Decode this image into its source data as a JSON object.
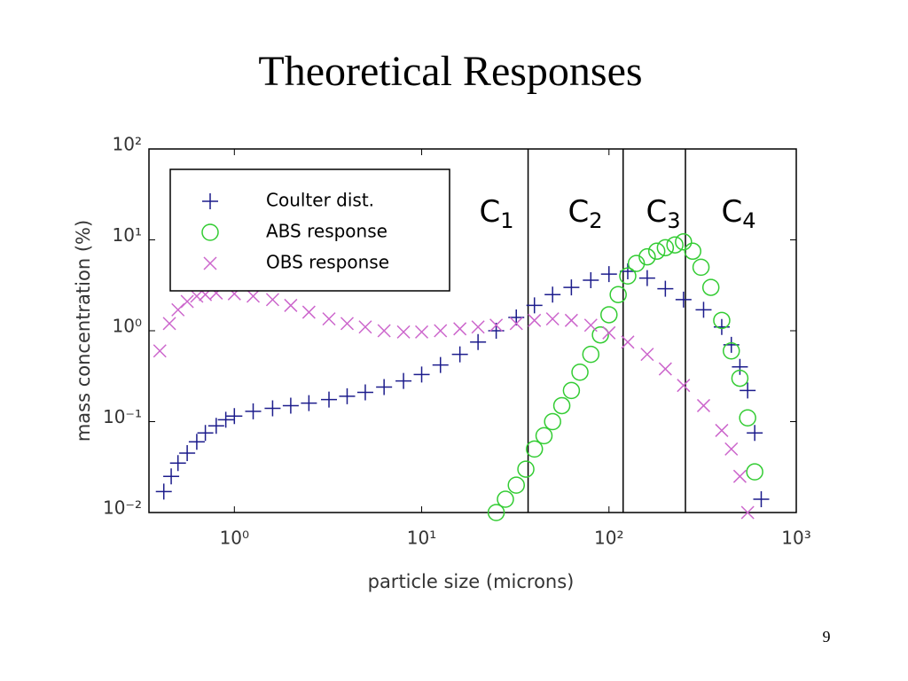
{
  "title": "Theoretical Responses",
  "page_number": "9",
  "chart_data": {
    "type": "scatter",
    "xlabel": "particle size (microns)",
    "ylabel": "mass concentration (%)",
    "xscale": "log",
    "yscale": "log",
    "xlim": [
      0.35,
      1000
    ],
    "ylim": [
      0.01,
      100
    ],
    "xticks": [
      {
        "value": 1,
        "label": "10⁰"
      },
      {
        "value": 10,
        "label": "10¹"
      },
      {
        "value": 100,
        "label": "10²"
      },
      {
        "value": 1000,
        "label": "10³"
      }
    ],
    "yticks": [
      {
        "value": 0.01,
        "label": "10⁻²"
      },
      {
        "value": 0.1,
        "label": "10⁻¹"
      },
      {
        "value": 1,
        "label": "10⁰"
      },
      {
        "value": 10,
        "label": "10¹"
      },
      {
        "value": 100,
        "label": "10²"
      }
    ],
    "legend": "upper left",
    "vlines": [
      37,
      119,
      256
    ],
    "annotations": [
      {
        "text": "C",
        "sub": "1"
      },
      {
        "text": "C",
        "sub": "2"
      },
      {
        "text": "C",
        "sub": "3"
      },
      {
        "text": "C",
        "sub": "4"
      }
    ],
    "series": [
      {
        "name": "Coulter dist.",
        "color": "#1c1c8c",
        "marker": "plus",
        "x": [
          0.42,
          0.46,
          0.5,
          0.56,
          0.63,
          0.7,
          0.8,
          0.9,
          1.0,
          1.26,
          1.6,
          2,
          2.5,
          3.2,
          4,
          5,
          6.3,
          8,
          10,
          12.6,
          16,
          20,
          25,
          32,
          40,
          50,
          63,
          80,
          100,
          126,
          160,
          200,
          250,
          320,
          400,
          450,
          500,
          550,
          600,
          650
        ],
        "values": [
          0.017,
          0.025,
          0.035,
          0.045,
          0.06,
          0.075,
          0.09,
          0.105,
          0.115,
          0.13,
          0.14,
          0.15,
          0.16,
          0.175,
          0.19,
          0.21,
          0.24,
          0.28,
          0.33,
          0.42,
          0.55,
          0.75,
          1.0,
          1.4,
          1.9,
          2.5,
          3.0,
          3.6,
          4.2,
          4.5,
          3.8,
          2.9,
          2.2,
          1.7,
          1.1,
          0.7,
          0.4,
          0.22,
          0.075,
          0.014
        ]
      },
      {
        "name": "ABS response",
        "color": "#33cc33",
        "marker": "circle",
        "x": [
          25,
          28,
          32,
          36,
          40,
          45,
          50,
          56,
          63,
          70,
          80,
          90,
          100,
          112,
          126,
          140,
          160,
          180,
          200,
          225,
          250,
          280,
          310,
          350,
          400,
          450,
          500,
          550,
          600
        ],
        "values": [
          0.01,
          0.014,
          0.02,
          0.03,
          0.05,
          0.07,
          0.1,
          0.15,
          0.22,
          0.35,
          0.55,
          0.9,
          1.5,
          2.5,
          4,
          5.5,
          6.5,
          7.5,
          8.2,
          8.8,
          9.5,
          7.5,
          5,
          3,
          1.3,
          0.6,
          0.3,
          0.11,
          0.028
        ]
      },
      {
        "name": "OBS response",
        "color": "#cc66cc",
        "marker": "cross",
        "x": [
          0.4,
          0.45,
          0.5,
          0.56,
          0.63,
          0.7,
          0.8,
          1.0,
          1.26,
          1.6,
          2,
          2.5,
          3.2,
          4,
          5,
          6.3,
          8,
          10,
          12.6,
          16,
          20,
          25,
          32,
          40,
          50,
          63,
          80,
          100,
          126,
          160,
          200,
          250,
          320,
          400,
          450,
          500,
          550
        ],
        "values": [
          0.6,
          1.2,
          1.7,
          2.1,
          2.4,
          2.5,
          2.6,
          2.55,
          2.4,
          2.2,
          1.9,
          1.6,
          1.35,
          1.2,
          1.1,
          1.0,
          0.97,
          0.97,
          1.0,
          1.05,
          1.1,
          1.15,
          1.2,
          1.3,
          1.35,
          1.3,
          1.15,
          0.95,
          0.75,
          0.55,
          0.38,
          0.25,
          0.15,
          0.08,
          0.05,
          0.025,
          0.01
        ]
      }
    ]
  }
}
